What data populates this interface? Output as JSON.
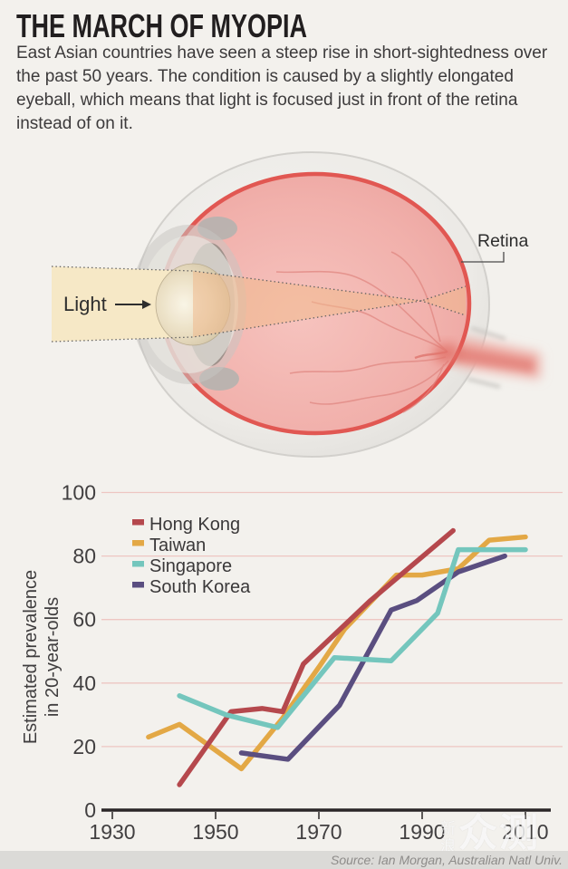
{
  "header": {
    "title": "THE MARCH OF MYOPIA",
    "intro": "East Asian countries have seen a steep rise in short-sightedness over the past 50 years. The condition is caused by a slightly elongated eyeball, which means that light is focused just in front of the retina instead of on it."
  },
  "diagram": {
    "light_label": "Light",
    "retina_label": "Retina"
  },
  "chart_data": {
    "type": "line",
    "title": "",
    "xlabel": "",
    "ylabel": "Estimated prevalence in 20-year-olds",
    "ylabel_lines": [
      "Estimated prevalence",
      "in 20-year-olds"
    ],
    "xlim": [
      1930,
      2012
    ],
    "ylim": [
      0,
      100
    ],
    "xticks": [
      1930,
      1950,
      1970,
      1990,
      2010
    ],
    "yticks": [
      0,
      20,
      40,
      60,
      80,
      100
    ],
    "grid": true,
    "legend_position": "upper-left",
    "series": [
      {
        "name": "Hong Kong",
        "color": "#b5484d",
        "points": [
          [
            1943,
            8
          ],
          [
            1953,
            31
          ],
          [
            1959,
            32
          ],
          [
            1963,
            31
          ],
          [
            1967,
            46
          ],
          [
            1980,
            66
          ],
          [
            1996,
            88
          ]
        ]
      },
      {
        "name": "Taiwan",
        "color": "#e3a845",
        "points": [
          [
            1937,
            23
          ],
          [
            1943,
            27
          ],
          [
            1955,
            13
          ],
          [
            1963,
            29
          ],
          [
            1970,
            45
          ],
          [
            1975,
            57
          ],
          [
            1985,
            74
          ],
          [
            1990,
            74
          ],
          [
            1997,
            76
          ],
          [
            2003,
            85
          ],
          [
            2010,
            86
          ]
        ]
      },
      {
        "name": "Singapore",
        "color": "#74c6bd",
        "points": [
          [
            1943,
            36
          ],
          [
            1952,
            30
          ],
          [
            1962,
            26
          ],
          [
            1973,
            48
          ],
          [
            1984,
            47
          ],
          [
            1993,
            62
          ],
          [
            1997,
            82
          ],
          [
            2010,
            82
          ]
        ]
      },
      {
        "name": "South Korea",
        "color": "#5a4e80",
        "points": [
          [
            1955,
            18
          ],
          [
            1964,
            16
          ],
          [
            1974,
            33
          ],
          [
            1984,
            63
          ],
          [
            1989,
            66
          ],
          [
            1997,
            75
          ],
          [
            2006,
            80
          ]
        ]
      }
    ],
    "colors": {
      "background": "#f3f1ed",
      "gridline": "#eec6c2",
      "axis": "#2a2627",
      "tick_label": "#413f40"
    }
  },
  "footer": {
    "source": "Source: Ian Morgan, Australian Natl Univ.",
    "watermark_small": "新浪",
    "watermark_large": "众测"
  }
}
